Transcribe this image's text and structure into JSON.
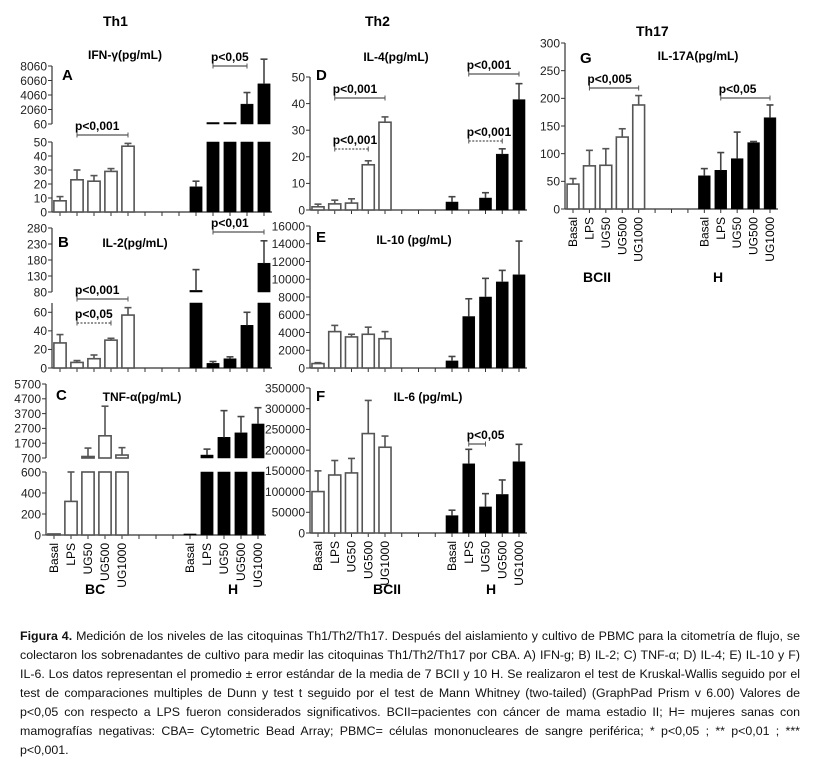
{
  "headings": {
    "th1": "Th1",
    "th2": "Th2",
    "th17": "Th17"
  },
  "chart_data": [
    {
      "id": "A",
      "letter": "A",
      "type": "bar",
      "title": "IFN-γ(pg/mL)",
      "ylabel": "pg/mL",
      "categories": [
        "Basal",
        "LPS",
        "UG50",
        "UG500",
        "UG1000"
      ],
      "groups": [
        "BC",
        "H"
      ],
      "show_xlabels": false,
      "segments": [
        {
          "range": [
            0,
            50
          ],
          "ticks": [
            0,
            10,
            20,
            30,
            40,
            50
          ]
        },
        {
          "range": [
            60,
            8060
          ],
          "ticks": [
            60,
            2060,
            4060,
            6060,
            8060
          ]
        }
      ],
      "series": [
        {
          "name": "BC",
          "color": "#ffffff",
          "values": [
            8,
            23,
            22,
            29,
            47
          ],
          "errors": [
            3,
            7,
            4,
            2,
            2
          ]
        },
        {
          "name": "H",
          "color": "#000000",
          "values": [
            18,
            100,
            100,
            2800,
            5600
          ],
          "errors": [
            4,
            0,
            0,
            1600,
            3400
          ]
        }
      ],
      "significance": [
        {
          "label": "p<0,001",
          "group": 0,
          "from": 1,
          "to": 4,
          "style": "solid"
        },
        {
          "label": "p<0,05",
          "group": 1,
          "from": 1,
          "to": 3,
          "style": "solid"
        }
      ]
    },
    {
      "id": "B",
      "letter": "B",
      "type": "bar",
      "title": "IL-2(pg/mL)",
      "ylabel": "pg/mL",
      "categories": [
        "Basal",
        "LPS",
        "UG50",
        "UG500",
        "UG1000"
      ],
      "groups": [
        "BC",
        "H"
      ],
      "show_xlabels": false,
      "segments": [
        {
          "range": [
            0,
            70
          ],
          "ticks": [
            0,
            20,
            40,
            60
          ]
        },
        {
          "range": [
            80,
            280
          ],
          "ticks": [
            80,
            130,
            180,
            230,
            280
          ]
        }
      ],
      "series": [
        {
          "name": "BC",
          "color": "#ffffff",
          "values": [
            27,
            6,
            10,
            30,
            57
          ],
          "errors": [
            9,
            2,
            4,
            2,
            8
          ]
        },
        {
          "name": "H",
          "color": "#000000",
          "values": [
            85,
            5,
            10,
            46,
            170
          ],
          "errors": [
            65,
            2,
            2,
            14,
            70
          ]
        }
      ],
      "significance": [
        {
          "label": "p<0,001",
          "group": 0,
          "from": 1,
          "to": 4,
          "style": "solid"
        },
        {
          "label": "p<0,05",
          "group": 0,
          "from": 1,
          "to": 3,
          "style": "dotted"
        },
        {
          "label": "p<0,01",
          "group": 1,
          "from": 1,
          "to": 4,
          "style": "solid"
        }
      ]
    },
    {
      "id": "C",
      "letter": "C",
      "type": "bar",
      "title": "TNF-α(pg/mL)",
      "ylabel": "pg/mL",
      "categories": [
        "Basal",
        "LPS",
        "UG50",
        "UG500",
        "UG1000"
      ],
      "groups": [
        "BC",
        "H"
      ],
      "show_xlabels": true,
      "segments": [
        {
          "range": [
            0,
            600
          ],
          "ticks": [
            0,
            200,
            400,
            600
          ]
        },
        {
          "range": [
            700,
            5700
          ],
          "ticks": [
            700,
            1700,
            2700,
            3700,
            4700,
            5700
          ]
        }
      ],
      "series": [
        {
          "name": "BC",
          "color": "#ffffff",
          "values": [
            10,
            320,
            720,
            2200,
            900
          ],
          "errors": [
            0,
            280,
            650,
            2000,
            500
          ]
        },
        {
          "name": "H",
          "color": "#000000",
          "values": [
            10,
            900,
            2100,
            2400,
            3000
          ],
          "errors": [
            0,
            400,
            1800,
            1100,
            1100
          ]
        }
      ],
      "significance": []
    },
    {
      "id": "D",
      "letter": "D",
      "type": "bar",
      "title": "IL-4(pg/mL)",
      "ylabel": "pg/mL",
      "categories": [
        "Basal",
        "LPS",
        "UG50",
        "UG500",
        "UG1000"
      ],
      "groups": [
        "BCII",
        "H"
      ],
      "show_xlabels": false,
      "segments": [
        {
          "range": [
            0,
            50
          ],
          "ticks": [
            0,
            10,
            20,
            30,
            40,
            50
          ]
        }
      ],
      "series": [
        {
          "name": "BCII",
          "color": "#ffffff",
          "values": [
            1.2,
            2.3,
            2.6,
            17,
            33
          ],
          "errors": [
            1,
            1.4,
            1.6,
            1.5,
            2
          ]
        },
        {
          "name": "H",
          "color": "#000000",
          "values": [
            3,
            0,
            4.5,
            21,
            41.5
          ],
          "errors": [
            2,
            0,
            2,
            2,
            6
          ]
        }
      ],
      "significance": [
        {
          "label": "p<0,001",
          "group": 0,
          "from": 1,
          "to": 4,
          "style": "solid"
        },
        {
          "label": "p<0,001",
          "group": 0,
          "from": 1,
          "to": 3,
          "style": "dotted"
        },
        {
          "label": "p<0,001",
          "group": 1,
          "from": 1,
          "to": 4,
          "style": "solid"
        },
        {
          "label": "p<0,001",
          "group": 1,
          "from": 1,
          "to": 3,
          "style": "dotted"
        }
      ]
    },
    {
      "id": "E",
      "letter": "E",
      "type": "bar",
      "title": "IL-10 (pg/mL)",
      "ylabel": "pg/mL",
      "categories": [
        "Basal",
        "LPS",
        "UG50",
        "UG500",
        "UG1000"
      ],
      "groups": [
        "BCII",
        "H"
      ],
      "show_xlabels": false,
      "segments": [
        {
          "range": [
            0,
            16000
          ],
          "ticks": [
            0,
            2000,
            4000,
            6000,
            8000,
            10000,
            12000,
            14000,
            16000
          ]
        }
      ],
      "series": [
        {
          "name": "BCII",
          "color": "#ffffff",
          "values": [
            500,
            4100,
            3500,
            3800,
            3300
          ],
          "errors": [
            100,
            700,
            300,
            800,
            800
          ]
        },
        {
          "name": "H",
          "color": "#000000",
          "values": [
            800,
            5800,
            8000,
            9700,
            10500
          ],
          "errors": [
            500,
            2000,
            2100,
            1300,
            3800
          ]
        }
      ],
      "significance": []
    },
    {
      "id": "F",
      "letter": "F",
      "type": "bar",
      "title": "IL-6 (pg/mL)",
      "ylabel": "pg/mL",
      "categories": [
        "Basal",
        "LPS",
        "UG50",
        "UG500",
        "UG1000"
      ],
      "groups": [
        "BCII",
        "H"
      ],
      "show_xlabels": true,
      "segments": [
        {
          "range": [
            0,
            350000
          ],
          "ticks": [
            0,
            50000,
            100000,
            150000,
            200000,
            250000,
            300000,
            350000
          ]
        }
      ],
      "series": [
        {
          "name": "BCII",
          "color": "#ffffff",
          "values": [
            100000,
            140000,
            145000,
            240000,
            207000
          ],
          "errors": [
            50000,
            35000,
            35000,
            80000,
            27000
          ]
        },
        {
          "name": "H",
          "color": "#000000",
          "values": [
            42000,
            167000,
            63000,
            93000,
            172000
          ],
          "errors": [
            13000,
            35000,
            32000,
            35000,
            42000
          ]
        }
      ],
      "significance": [
        {
          "label": "p<0,05",
          "group": 1,
          "from": 1,
          "to": 2,
          "style": "solid"
        }
      ]
    },
    {
      "id": "G",
      "letter": "G",
      "type": "bar",
      "title": "IL-17A(pg/mL)",
      "ylabel": "pg/mL",
      "categories": [
        "Basal",
        "LPS",
        "UG50",
        "UG500",
        "UG1000"
      ],
      "groups": [
        "BCII",
        "H"
      ],
      "show_xlabels": true,
      "segments": [
        {
          "range": [
            0,
            300
          ],
          "ticks": [
            0,
            50,
            100,
            150,
            200,
            250,
            300
          ]
        }
      ],
      "series": [
        {
          "name": "BCII",
          "color": "#ffffff",
          "values": [
            45,
            78,
            79,
            130,
            188
          ],
          "errors": [
            10,
            28,
            30,
            15,
            17
          ]
        },
        {
          "name": "H",
          "color": "#000000",
          "values": [
            60,
            70,
            91,
            120,
            165
          ],
          "errors": [
            13,
            32,
            48,
            2,
            23
          ]
        }
      ],
      "significance": [
        {
          "label": "p<0,005",
          "group": 0,
          "from": 1,
          "to": 4,
          "style": "solid"
        },
        {
          "label": "p<0,05",
          "group": 1,
          "from": 1,
          "to": 4,
          "style": "solid"
        }
      ]
    }
  ],
  "caption": {
    "bold": "Figura 4.",
    "text": " Medición de los niveles de las citoquinas Th1/Th2/Th17. Después del aislamiento y cultivo de PBMC para la citometría de flujo, se colectaron los sobrenadantes de cultivo para medir las citoquinas Th1/Th2/Th17 por CBA. A) IFN-g; B) IL-2; C) TNF-α; D) IL-4; E) IL-10 y F) IL-6. Los datos representan el promedio ± error estándar de la media de 7 BCII y 10 H. Se realizaron el test de Kruskal-Wallis seguido por el test de comparaciones multiples de Dunn y test t seguido por el test de Mann Whitney (two-tailed) (GraphPad Prism v 6.00) Valores de p<0,05 con respecto a LPS fueron considerados significativos. BCII=pacientes con cáncer de mama estadio II; H= mujeres sanas con mamografías negativas: CBA= Cytometric Bead Array; PBMC= células mononucleares de sangre periférica; * p<0,05 ; ** p<0,01 ; *** p<0,001."
  }
}
